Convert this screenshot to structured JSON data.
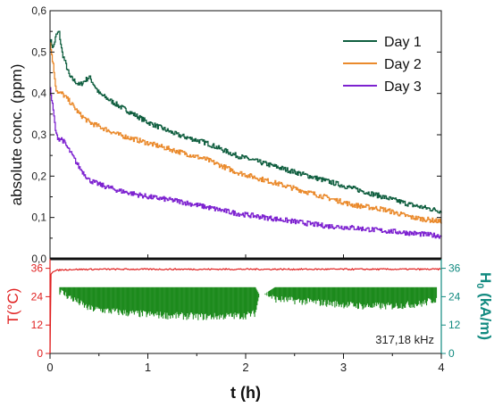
{
  "chart_data": [
    {
      "type": "line",
      "ylabel": "absolute conc. (ppm)",
      "xlim": [
        0,
        4
      ],
      "ylim": [
        0,
        0.6
      ],
      "y_ticks": [
        "0,0",
        "0,1",
        "0,2",
        "0,3",
        "0,4",
        "0,5",
        "0,6"
      ],
      "legend_position": "top-right",
      "grid": false,
      "series": [
        {
          "name": "Day 1",
          "color": "#0f5e3f",
          "x": [
            0,
            0.03,
            0.06,
            0.09,
            0.12,
            0.2,
            0.3,
            0.4,
            0.5,
            0.7,
            1.0,
            1.3,
            1.6,
            1.9,
            2.2,
            2.5,
            2.8,
            3.1,
            3.4,
            3.7,
            4.0
          ],
          "y": [
            0.53,
            0.51,
            0.54,
            0.55,
            0.5,
            0.44,
            0.42,
            0.44,
            0.4,
            0.37,
            0.33,
            0.3,
            0.28,
            0.25,
            0.23,
            0.21,
            0.19,
            0.17,
            0.15,
            0.13,
            0.115
          ]
        },
        {
          "name": "Day 2",
          "color": "#ea8a2c",
          "x": [
            0,
            0.03,
            0.06,
            0.09,
            0.12,
            0.2,
            0.3,
            0.4,
            0.5,
            0.7,
            1.0,
            1.3,
            1.6,
            1.9,
            2.2,
            2.5,
            2.8,
            3.1,
            3.4,
            3.7,
            4.0
          ],
          "y": [
            0.52,
            0.47,
            0.41,
            0.4,
            0.4,
            0.38,
            0.35,
            0.33,
            0.32,
            0.3,
            0.28,
            0.26,
            0.24,
            0.21,
            0.19,
            0.17,
            0.15,
            0.13,
            0.12,
            0.1,
            0.09
          ]
        },
        {
          "name": "Day 3",
          "color": "#7d22d0",
          "x": [
            0,
            0.03,
            0.06,
            0.09,
            0.12,
            0.2,
            0.3,
            0.4,
            0.5,
            0.7,
            1.0,
            1.3,
            1.6,
            1.9,
            2.2,
            2.5,
            2.8,
            3.1,
            3.4,
            3.7,
            4.0
          ],
          "y": [
            0.41,
            0.36,
            0.3,
            0.29,
            0.29,
            0.26,
            0.22,
            0.19,
            0.18,
            0.165,
            0.15,
            0.14,
            0.125,
            0.11,
            0.1,
            0.09,
            0.08,
            0.075,
            0.068,
            0.062,
            0.055
          ]
        }
      ]
    },
    {
      "type": "line",
      "xlabel": "t (h)",
      "xlim": [
        0,
        4
      ],
      "x_ticks": [
        0,
        1,
        2,
        3,
        4
      ],
      "grid": false,
      "annotation": "317,18 kHz",
      "left_axis": {
        "label_main": "T",
        "label_unit": "(°C)",
        "color": "#e02020",
        "ylim": [
          0,
          40
        ],
        "ticks": [
          0,
          12,
          24,
          36
        ]
      },
      "right_axis": {
        "label_main": "H",
        "label_sub": "0",
        "label_unit": " (kA/m)",
        "color": "#128a80",
        "ylim": [
          0,
          40
        ],
        "ticks": [
          0,
          12,
          24,
          36
        ]
      },
      "series": [
        {
          "color": "#e02020",
          "axis": "left",
          "x": [
            0,
            0.01,
            0.03,
            0.06,
            0.1,
            0.2,
            0.5,
            1.0,
            1.5,
            2.0,
            2.5,
            3.0,
            3.5,
            4.0
          ],
          "y": [
            0,
            33.5,
            34.5,
            35,
            35.3,
            35.5,
            35.6,
            35.6,
            35.6,
            35.6,
            35.6,
            35.6,
            35.6,
            35.6
          ]
        },
        {
          "color": "#1c8a1c",
          "axis": "right",
          "x": [
            0,
            0.15,
            0.4,
            0.8,
            1.2,
            1.6,
            2.0,
            2.1,
            2.15,
            2.3,
            2.6,
            2.9,
            3.2,
            3.5,
            3.8,
            3.95
          ],
          "y_upper": [
            28,
            28,
            28,
            28,
            28,
            28,
            28,
            28,
            24,
            28,
            28,
            28,
            28,
            28,
            28,
            28
          ],
          "y_lower": [
            28,
            24,
            18,
            16,
            15,
            14.5,
            15,
            16,
            26,
            22,
            21,
            20,
            19,
            19,
            20,
            22
          ]
        }
      ]
    }
  ]
}
